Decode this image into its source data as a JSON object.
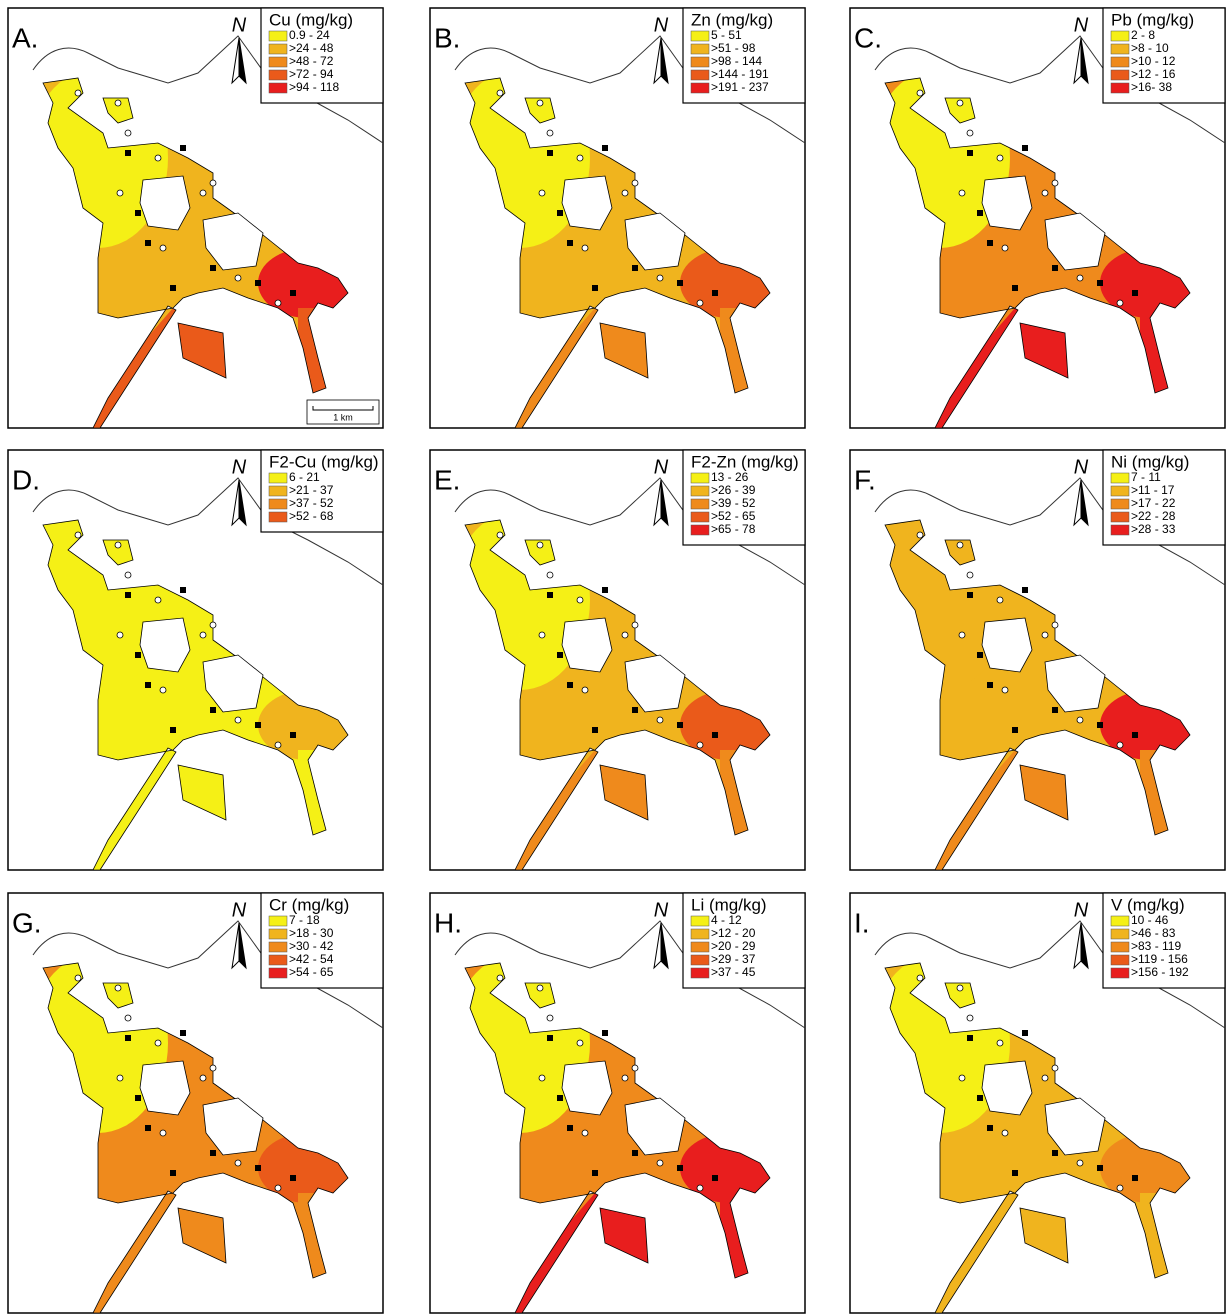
{
  "panels": [
    {
      "label": "A.",
      "legend_title": "Cu (mg/kg)",
      "classes": [
        "0.9 - 24",
        ">24 - 48",
        ">48 - 72",
        ">72 - 94",
        ">94 - 118"
      ],
      "north": "N",
      "scale": "1 km"
    },
    {
      "label": "B.",
      "legend_title": "Zn (mg/kg)",
      "classes": [
        "5 - 51",
        ">51 - 98",
        ">98 - 144",
        ">144 - 191",
        ">191 - 237"
      ],
      "north": "N"
    },
    {
      "label": "C.",
      "legend_title": "Pb (mg/kg)",
      "classes": [
        "2 - 8",
        ">8 - 10",
        ">10 - 12",
        ">12 - 16",
        ">16- 38"
      ],
      "north": "N"
    },
    {
      "label": "D.",
      "legend_title": "F2-Cu (mg/kg)",
      "classes": [
        "6 - 21",
        ">21 - 37",
        ">37 - 52",
        ">52 - 68"
      ],
      "north": "N"
    },
    {
      "label": "E.",
      "legend_title": "F2-Zn (mg/kg)",
      "classes": [
        "13 - 26",
        ">26 - 39",
        ">39 - 52",
        ">52 - 65",
        ">65 - 78"
      ],
      "north": "N"
    },
    {
      "label": "F.",
      "legend_title": "Ni (mg/kg)",
      "classes": [
        "7 - 11",
        ">11 - 17",
        ">17 - 22",
        ">22 - 28",
        ">28 - 33"
      ],
      "north": "N"
    },
    {
      "label": "G.",
      "legend_title": "Cr (mg/kg)",
      "classes": [
        "7 - 18",
        ">18 - 30",
        ">30 - 42",
        ">42 - 54",
        ">54 - 65"
      ],
      "north": "N"
    },
    {
      "label": "H.",
      "legend_title": "Li (mg/kg)",
      "classes": [
        "4 - 12",
        ">12 - 20",
        ">20 - 29",
        ">29 - 37",
        ">37 - 45"
      ],
      "north": "N"
    },
    {
      "label": "I.",
      "legend_title": "V (mg/kg)",
      "classes": [
        "10 - 46",
        ">46 - 83",
        ">83 - 119",
        ">119 - 156",
        ">156 - 192"
      ],
      "north": "N"
    }
  ]
}
